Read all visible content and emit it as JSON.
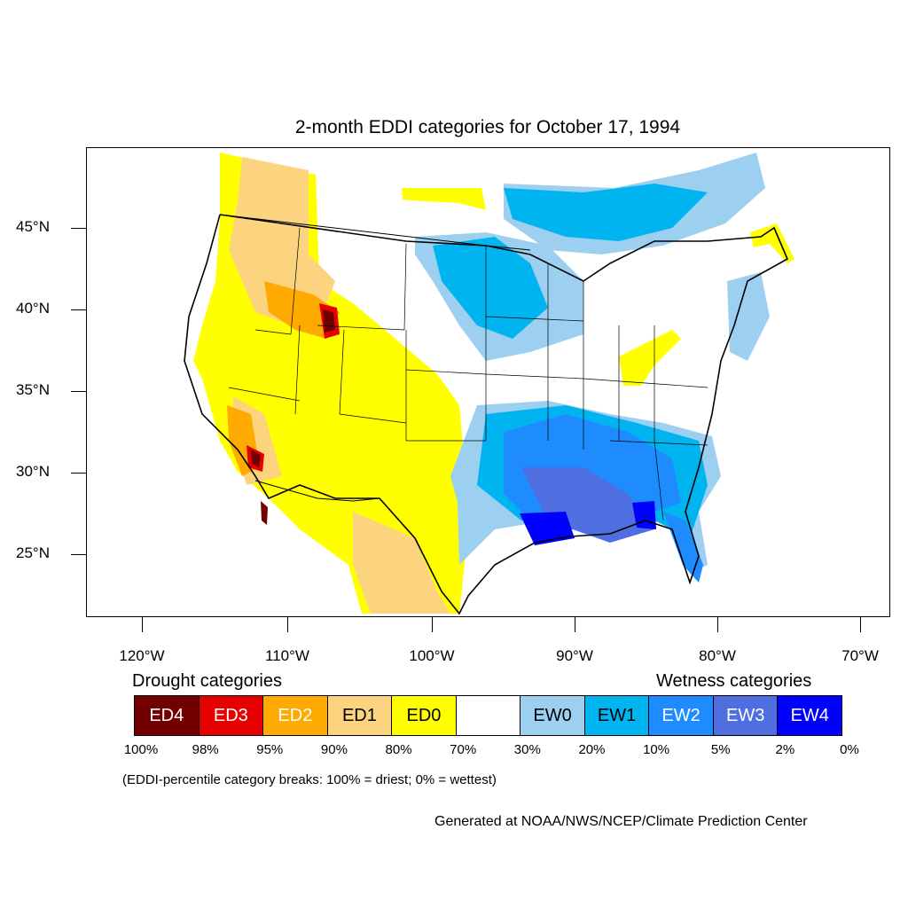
{
  "title": "2-month EDDI categories for October 17, 1994",
  "lat_labels": [
    "45°N",
    "40°N",
    "35°N",
    "30°N",
    "25°N"
  ],
  "lon_labels": [
    "120°W",
    "110°W",
    "100°W",
    "90°W",
    "80°W",
    "70°W"
  ],
  "legend": {
    "drought_heading": "Drought categories",
    "wetness_heading": "Wetness categories",
    "categories": [
      {
        "label": "ED4",
        "color": "#730000",
        "text_color": "#ffffff"
      },
      {
        "label": "ED3",
        "color": "#e60000",
        "text_color": "#ffffff"
      },
      {
        "label": "ED2",
        "color": "#ffaa00",
        "text_color": "#ffffff"
      },
      {
        "label": "ED1",
        "color": "#fcd37f",
        "text_color": "#000000"
      },
      {
        "label": "ED0",
        "color": "#ffff00",
        "text_color": "#000000"
      },
      {
        "label": "",
        "color": "#ffffff",
        "text_color": "#000000"
      },
      {
        "label": "EW0",
        "color": "#9dd0f0",
        "text_color": "#000000"
      },
      {
        "label": "EW1",
        "color": "#00b4f0",
        "text_color": "#000000"
      },
      {
        "label": "EW2",
        "color": "#1e8cff",
        "text_color": "#ffffff"
      },
      {
        "label": "EW3",
        "color": "#4f6ee0",
        "text_color": "#ffffff"
      },
      {
        "label": "EW4",
        "color": "#0000ff",
        "text_color": "#ffffff"
      }
    ],
    "breaks": [
      "100%",
      "98%",
      "95%",
      "90%",
      "80%",
      "70%",
      "30%",
      "20%",
      "10%",
      "5%",
      "2%",
      "0%"
    ]
  },
  "break_note": "(EDDI-percentile category breaks: 100% = driest; 0% = wettest)",
  "credit": "Generated at NOAA/NWS/NCEP/Climate Prediction Center"
}
